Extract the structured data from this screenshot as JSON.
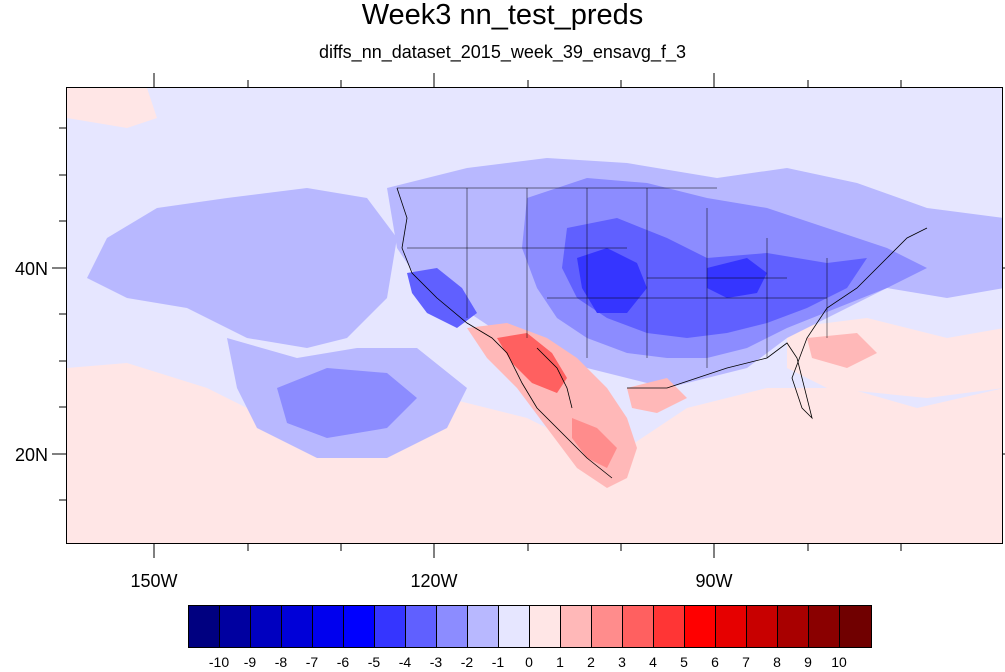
{
  "title": "Week3 nn_test_preds",
  "subtitle": "diffs_nn_dataset_2015_week_39_ensavg_f_3",
  "map": {
    "lat_labels": [
      "40N",
      "20N"
    ],
    "lon_labels": [
      "150W",
      "120W",
      "90W"
    ]
  },
  "colorbar": {
    "labels": [
      "-10",
      "-9",
      "-8",
      "-7",
      "-6",
      "-5",
      "-4",
      "-3",
      "-2",
      "-1",
      "0",
      "1",
      "2",
      "3",
      "4",
      "5",
      "6",
      "7",
      "8",
      "9",
      "10"
    ],
    "colors": [
      "#000080",
      "#0000a0",
      "#0000c0",
      "#0000d8",
      "#0000ee",
      "#0000ff",
      "#3535ff",
      "#6060ff",
      "#8c8cff",
      "#b8b8ff",
      "#e6e6ff",
      "#ffe6e6",
      "#ffb8b8",
      "#ff8c8c",
      "#ff6060",
      "#ff3535",
      "#ff0000",
      "#e60000",
      "#c80000",
      "#a80000",
      "#8a0000",
      "#700000"
    ]
  }
}
